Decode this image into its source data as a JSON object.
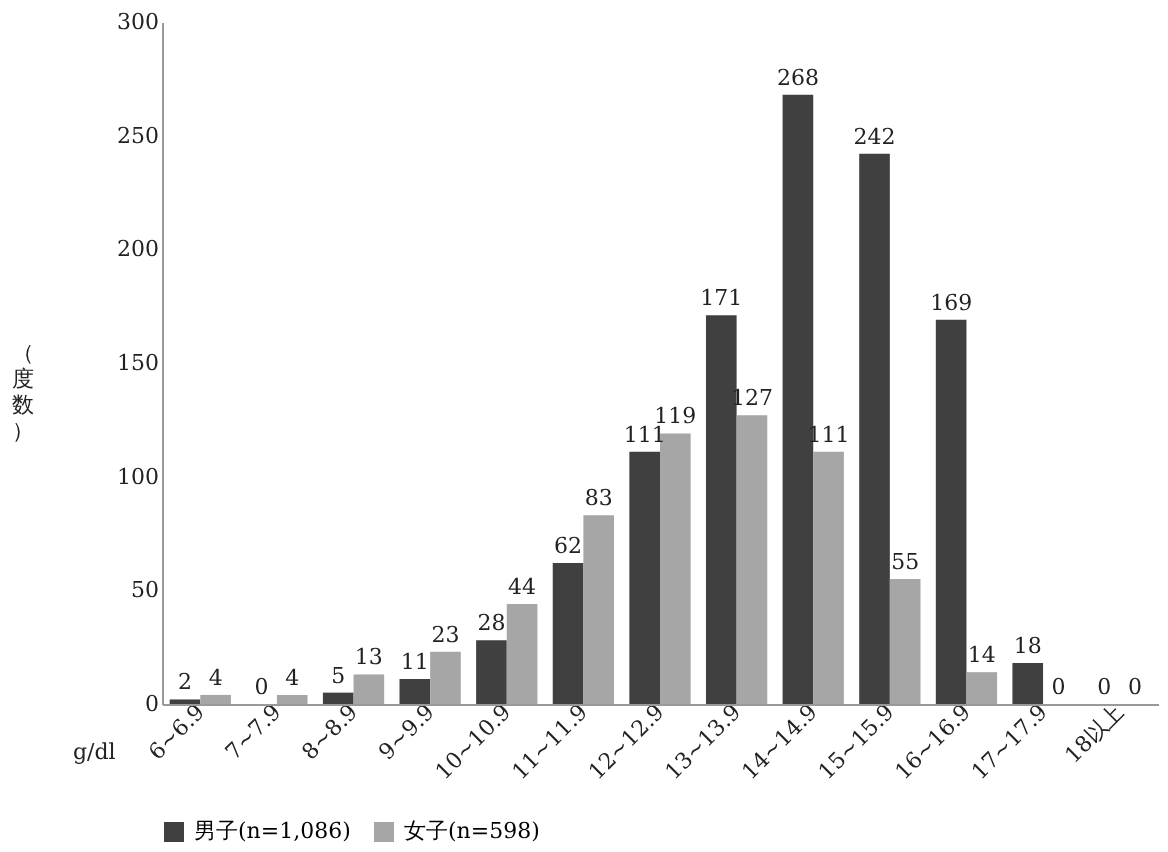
{
  "chart_data": {
    "type": "bar",
    "xlabel": "g/dl",
    "ylabel": "（度数）",
    "categories": [
      "6~6.9",
      "7~7.9",
      "8~8.9",
      "9~9.9",
      "10~10.9",
      "11~11.9",
      "12~12.9",
      "13~13.9",
      "14~14.9",
      "15~15.9",
      "16~16.9",
      "17~17.9",
      "18以上"
    ],
    "series": [
      {
        "name": "男子(n=1,086)",
        "color": "#404040",
        "values": [
          2,
          0,
          5,
          11,
          28,
          62,
          111,
          171,
          268,
          242,
          169,
          18,
          0
        ]
      },
      {
        "name": "女子(n=598)",
        "color": "#a6a6a6",
        "values": [
          4,
          4,
          13,
          23,
          44,
          83,
          119,
          127,
          111,
          55,
          14,
          0,
          0
        ]
      }
    ],
    "ylim": [
      0,
      300
    ],
    "yticks": [
      0,
      50,
      100,
      150,
      200,
      250,
      300
    ],
    "grid": false,
    "legend": "bottom",
    "data_labels": true
  }
}
